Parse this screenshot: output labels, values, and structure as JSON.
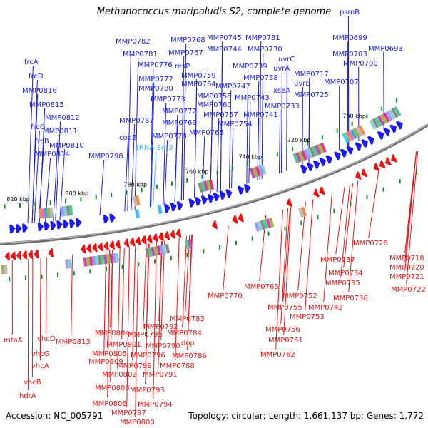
{
  "title": "Methanococcus maripaludis S2, complete genome",
  "footer": {
    "accession": "Accession: NC_005791",
    "topology": "Topology: circular; Length: 1,661,137 bp; Genes: 1,772"
  },
  "colors": {
    "forward": "#1a1aee",
    "reverse": "#ee1111",
    "special": "#44bbee",
    "axis": "#777777",
    "tick_green": "#118822"
  },
  "ticks": [
    "700 kbp",
    "720 kbp",
    "740 kbp",
    "760 kbp",
    "780 kbp",
    "800 kbp",
    "820 kbp"
  ],
  "forward_labels": [
    "psmB",
    "MMP0699",
    "MMP0693",
    "MMP0703",
    "MMP0700",
    "MMP0707",
    "MMP0717",
    "MMP0725",
    "uvrC",
    "uvrA",
    "uvrB",
    "xseA",
    "MMP0731",
    "MMP0730",
    "MMP0738",
    "MMP0733",
    "MMP0741",
    "MMP0745",
    "MMP0744",
    "MMP0739",
    "MMP0747",
    "MMP0743",
    "MMP0754",
    "MMP0758",
    "MMP0760",
    "MMP0757",
    "MMP0765",
    "MMP0768",
    "MMP0767",
    "resP",
    "MMP0759",
    "MMP0764",
    "MMP0782",
    "MMP0781",
    "MMP0776",
    "MMP0777",
    "MMP0780",
    "MMP0773",
    "MMP0772",
    "MMP0769",
    "MMP0778",
    "MMP0787",
    "codB",
    "tRNA-Ser3",
    "MMP0798",
    "frcA",
    "frcD",
    "MMP0816",
    "MMP0815",
    "MMP0812",
    "frcG",
    "MMP0811",
    "frcB",
    "MMP0810",
    "MMP0814"
  ],
  "reverse_labels": [
    "MMP0726",
    "MMP0718",
    "MMP0720",
    "MMP0721",
    "MMP0722",
    "MMP0737",
    "MMP0734",
    "MMP0735",
    "MMP0736",
    "MMP0742",
    "MMP0752",
    "MMP0763",
    "MMP0755",
    "MMP0753",
    "MMP0756",
    "MMP0761",
    "MMP0762",
    "MMP0770",
    "MMP0783",
    "MMP0784",
    "dop",
    "MMP0786",
    "MMP0788",
    "MMP0792",
    "MMP0795",
    "MMP0790",
    "MMP0796",
    "MMP0791",
    "MMP0793",
    "MMP0794",
    "MMP0804",
    "MMP0801",
    "MMP0805",
    "MMP0809",
    "MMP0799",
    "MMP0802",
    "MMP0803",
    "MMP0806",
    "MMP0797",
    "MMP0800",
    "MMP0813",
    "vhcD",
    "vhcG",
    "vhcA",
    "vhcB",
    "hdrA",
    "mtaA"
  ]
}
